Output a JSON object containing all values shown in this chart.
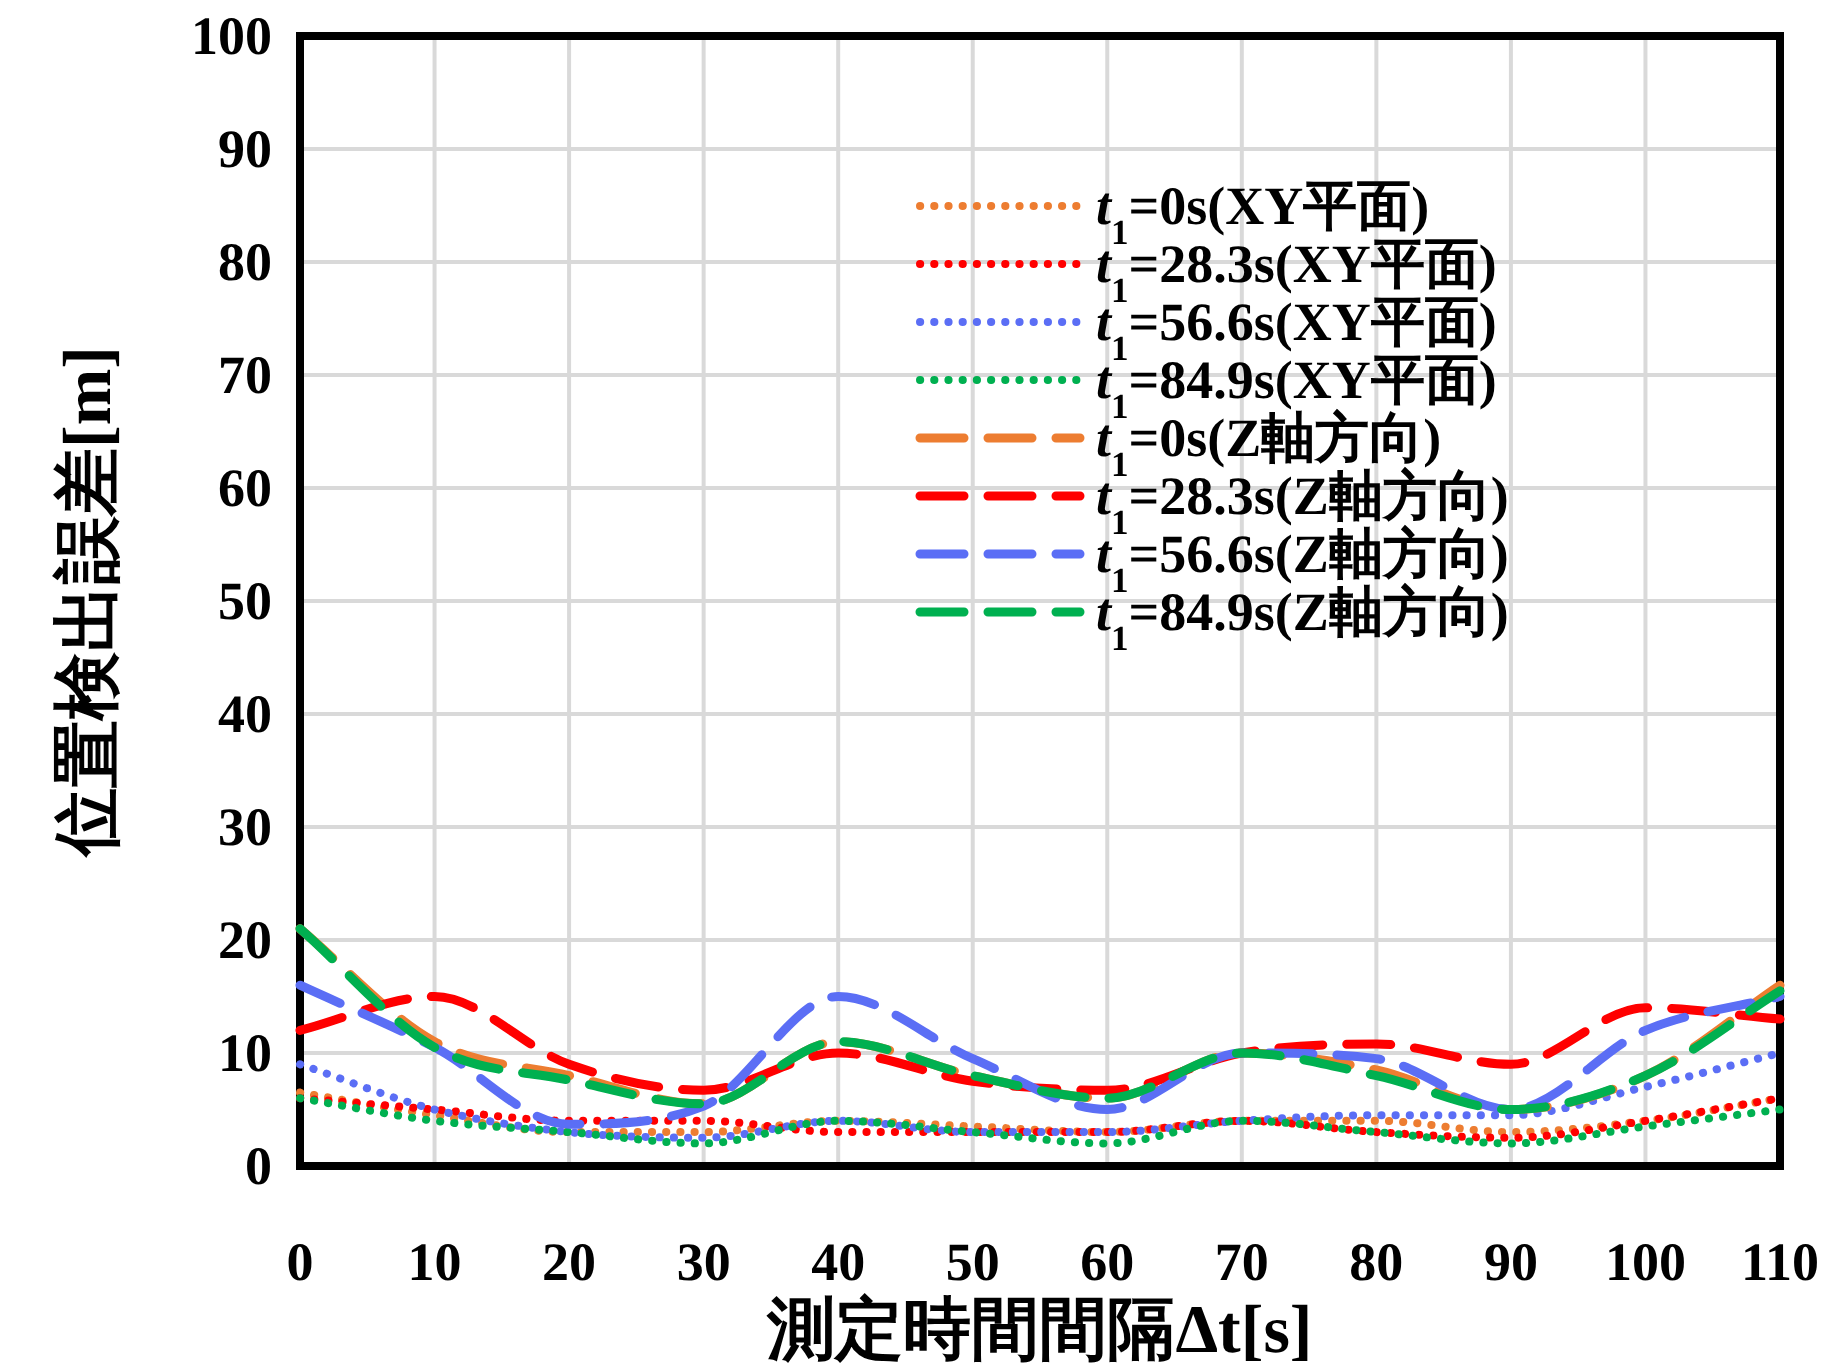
{
  "chart_data": {
    "type": "line",
    "xlabel": "測定時間間隔Δt[s]",
    "ylabel": "位置検出誤差[m]",
    "x": [
      0,
      10,
      20,
      30,
      40,
      50,
      60,
      70,
      80,
      90,
      100,
      110
    ],
    "xlim": [
      0,
      110
    ],
    "ylim": [
      0,
      100
    ],
    "xticks": [
      0,
      10,
      20,
      30,
      40,
      50,
      60,
      70,
      80,
      90,
      100,
      110
    ],
    "yticks": [
      0,
      10,
      20,
      30,
      40,
      50,
      60,
      70,
      80,
      90,
      100
    ],
    "grid": true,
    "legend": "top right",
    "marker": "none",
    "series": [
      {
        "name": "*t*$_{1}$=0s(XY平面)",
        "color": "#ed7d31",
        "line_style": "dotted",
        "values": [
          6.5,
          4.5,
          3,
          3,
          4,
          3.5,
          3,
          4,
          4,
          3,
          4,
          6
        ]
      },
      {
        "name": "*t*$_{1}$=28.3s(XY平面)",
        "color": "#ff0000",
        "line_style": "dotted",
        "values": [
          6,
          5,
          4,
          4,
          3,
          3,
          3,
          4,
          3,
          2.5,
          4,
          6
        ]
      },
      {
        "name": "*t*$_{1}$=56.6s(XY平面)",
        "color": "#5b6ef5",
        "line_style": "dotted",
        "values": [
          9,
          5,
          3,
          2.5,
          4,
          3,
          3,
          4,
          4.5,
          4.5,
          7,
          10
        ]
      },
      {
        "name": "*t*$_{1}$=84.9s(XY平面)",
        "color": "#00b050",
        "line_style": "dotted",
        "values": [
          6,
          4,
          3,
          2,
          4,
          3,
          2,
          4,
          3,
          2,
          3.5,
          5
        ]
      },
      {
        "name": "*t*$_{1}$=0s(Z軸方向)",
        "color": "#ed7d31",
        "line_style": "dashed",
        "values": [
          21,
          11,
          8,
          5.5,
          11,
          8,
          6,
          10,
          8.5,
          5,
          8,
          16
        ]
      },
      {
        "name": "*t*$_{1}$=28.3s(Z軸方向)",
        "color": "#ff0000",
        "line_style": "dashed",
        "values": [
          12,
          15,
          9,
          6.7,
          10,
          7.5,
          6.7,
          10,
          10.8,
          9,
          14,
          13
        ]
      },
      {
        "name": "*t*$_{1}$=56.6s(Z軸方向)",
        "color": "#5b6ef5",
        "line_style": "dashed",
        "values": [
          16,
          10.5,
          3.7,
          5.3,
          15,
          9.5,
          5,
          10,
          9.5,
          5,
          12,
          15
        ]
      },
      {
        "name": "*t*$_{1}$=84.9s(Z軸方向)",
        "color": "#00b050",
        "line_style": "dashed",
        "values": [
          21,
          10.5,
          7.6,
          5.5,
          11,
          8,
          6,
          10,
          8,
          5,
          8,
          15.5
        ]
      }
    ]
  }
}
